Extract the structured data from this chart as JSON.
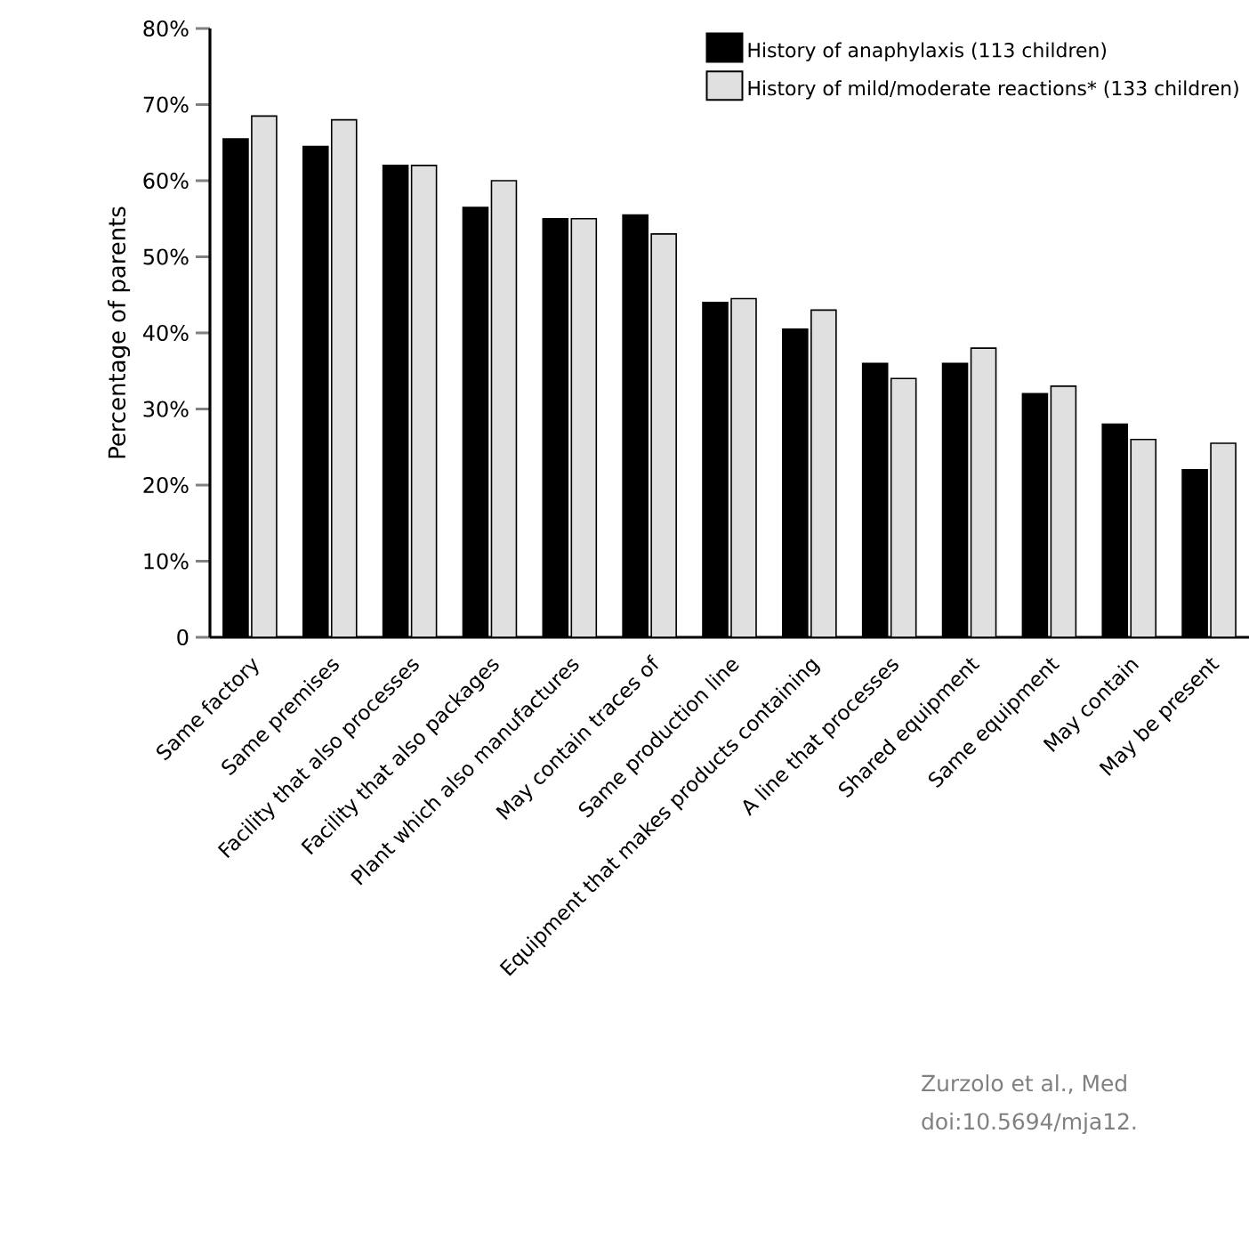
{
  "chart_data": {
    "type": "bar",
    "ylabel": "Percentage of parents",
    "categories": [
      "Same factory",
      "Same premises",
      "Facility that also processes",
      "Facility that also packages",
      "Plant which also manufactures",
      "May contain traces of",
      "Same production line",
      "Equipment that makes products containing",
      "A line that processes",
      "Shared equipment",
      "Same equipment",
      "May contain",
      "May be present"
    ],
    "series": [
      {
        "name": "History of anaphylaxis (113 children)",
        "color": "#000000",
        "values": [
          65.5,
          64.5,
          62,
          56.5,
          55,
          55.5,
          44,
          40.5,
          36,
          36,
          32,
          28,
          22
        ]
      },
      {
        "name": "History of mild/moderate reactions* (133 children)",
        "color": "#e0e0e0",
        "values": [
          68.5,
          68,
          62,
          60,
          55,
          53,
          44.5,
          43,
          34,
          38,
          33,
          26,
          25.5
        ]
      }
    ],
    "ylim": [
      0,
      80
    ],
    "yticks": [
      {
        "value": 0,
        "label": "0"
      },
      {
        "value": 10,
        "label": "10%"
      },
      {
        "value": 20,
        "label": "20%"
      },
      {
        "value": 30,
        "label": "30%"
      },
      {
        "value": 40,
        "label": "40%"
      },
      {
        "value": 50,
        "label": "50%"
      },
      {
        "value": 60,
        "label": "60%"
      },
      {
        "value": 70,
        "label": "70%"
      },
      {
        "value": 80,
        "label": "80%"
      }
    ],
    "legend": "top right",
    "annotations": [
      "Zurzolo et al., Med",
      "doi:10.5694/mja12."
    ]
  }
}
